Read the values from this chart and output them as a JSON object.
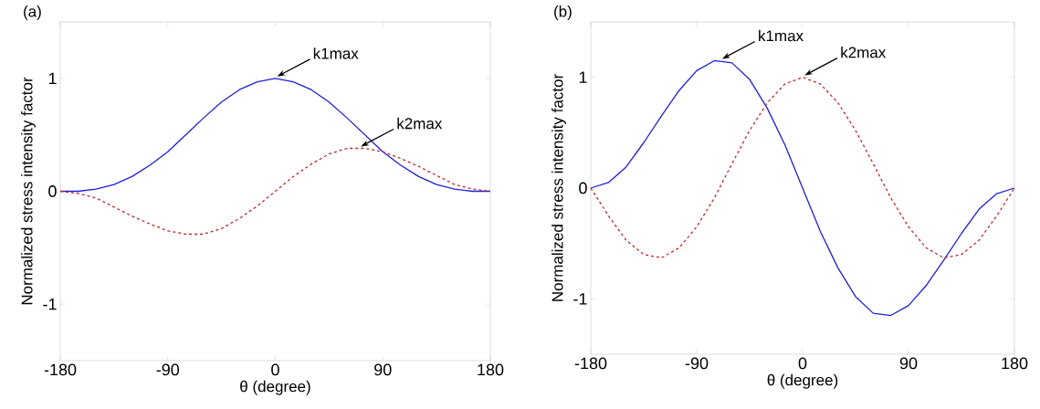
{
  "chart_data": [
    {
      "type": "line",
      "title": "(a)",
      "xlabel": "θ (degree)",
      "ylabel": "Normalized stress intensity factor",
      "x": [
        -180,
        -165,
        -150,
        -135,
        -120,
        -105,
        -90,
        -75,
        -60,
        -45,
        -30,
        -15,
        0,
        15,
        30,
        45,
        60,
        75,
        90,
        105,
        120,
        135,
        150,
        165,
        180
      ],
      "series": [
        {
          "color": "#1f1fd6",
          "line_style": "solid",
          "values": [
            0,
            0,
            0.02,
            0.06,
            0.13,
            0.23,
            0.35,
            0.5,
            0.65,
            0.79,
            0.9,
            0.97,
            1,
            0.97,
            0.9,
            0.79,
            0.65,
            0.5,
            0.35,
            0.23,
            0.13,
            0.06,
            0.02,
            0,
            0
          ]
        },
        {
          "color": "#c0282a",
          "line_style": "dashed",
          "values": [
            0,
            -0.02,
            -0.06,
            -0.14,
            -0.22,
            -0.29,
            -0.35,
            -0.38,
            -0.38,
            -0.33,
            -0.24,
            -0.13,
            0,
            0.13,
            0.24,
            0.33,
            0.38,
            0.38,
            0.35,
            0.29,
            0.22,
            0.14,
            0.06,
            0.02,
            0
          ]
        }
      ],
      "xlim": [
        -180,
        180
      ],
      "ylim": [
        -1.5,
        1.5
      ],
      "xticks": [
        -180,
        -90,
        0,
        90,
        180
      ],
      "yticks": [
        -1,
        0,
        1
      ],
      "grid": false,
      "annotations": [
        {
          "text": "k1max",
          "x": 0,
          "y": 1
        },
        {
          "text": "k2max",
          "x": 70,
          "y": 0.38
        }
      ]
    },
    {
      "type": "line",
      "title": "(b)",
      "xlabel": "θ (degree)",
      "ylabel": "Normalized stress intensity factor",
      "x": [
        -180,
        -165,
        -150,
        -135,
        -120,
        -105,
        -90,
        -75,
        -60,
        -45,
        -30,
        -15,
        0,
        15,
        30,
        45,
        60,
        75,
        90,
        105,
        120,
        135,
        150,
        165,
        180
      ],
      "series": [
        {
          "color": "#1f1fd6",
          "line_style": "solid",
          "values": [
            0,
            0.05,
            0.19,
            0.41,
            0.65,
            0.88,
            1.06,
            1.15,
            1.13,
            0.98,
            0.72,
            0.39,
            0,
            -0.39,
            -0.72,
            -0.98,
            -1.13,
            -1.15,
            -1.06,
            -0.88,
            -0.65,
            -0.41,
            -0.19,
            -0.05,
            0
          ]
        },
        {
          "color": "#c0282a",
          "line_style": "dashed",
          "values": [
            0,
            -0.25,
            -0.47,
            -0.6,
            -0.63,
            -0.54,
            -0.35,
            -0.09,
            0.22,
            0.52,
            0.77,
            0.94,
            1,
            0.94,
            0.77,
            0.52,
            0.22,
            -0.09,
            -0.35,
            -0.54,
            -0.63,
            -0.6,
            -0.47,
            -0.25,
            0
          ]
        }
      ],
      "xlim": [
        -180,
        180
      ],
      "ylim": [
        -1.5,
        1.5
      ],
      "xticks": [
        -180,
        -90,
        0,
        90,
        180
      ],
      "yticks": [
        -1,
        0,
        1
      ],
      "grid": false,
      "annotations": [
        {
          "text": "k1max",
          "x": -70,
          "y": 1.15
        },
        {
          "text": "k2max",
          "x": 0,
          "y": 1
        }
      ]
    }
  ]
}
